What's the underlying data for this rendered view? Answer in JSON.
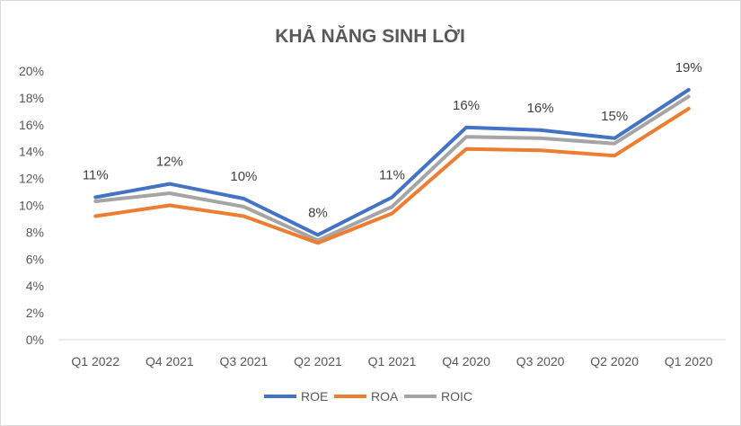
{
  "chart_data": {
    "type": "line",
    "title": "KHẢ NĂNG SINH LỜI",
    "categories": [
      "Q1 2022",
      "Q4 2021",
      "Q3 2021",
      "Q2 2021",
      "Q1 2021",
      "Q4 2020",
      "Q3 2020",
      "Q2 2020",
      "Q1 2020"
    ],
    "y_ticks": [
      "0%",
      "2%",
      "4%",
      "6%",
      "8%",
      "10%",
      "12%",
      "14%",
      "16%",
      "18%",
      "20%"
    ],
    "ylim": [
      0,
      20
    ],
    "xlabel": "",
    "ylabel": "",
    "grid": false,
    "legend_position": "bottom",
    "series": [
      {
        "name": "ROE",
        "color": "#4472c4",
        "values": [
          10.6,
          11.6,
          10.5,
          7.8,
          10.6,
          15.8,
          15.6,
          15.0,
          18.6
        ],
        "data_labels": [
          "11%",
          "12%",
          "10%",
          "8%",
          "11%",
          "16%",
          "16%",
          "15%",
          "19%"
        ]
      },
      {
        "name": "ROA",
        "color": "#ed7d31",
        "values": [
          9.2,
          10.0,
          9.2,
          7.2,
          9.4,
          14.2,
          14.1,
          13.7,
          17.2
        ]
      },
      {
        "name": "ROIC",
        "color": "#a5a5a5",
        "values": [
          10.3,
          10.9,
          9.9,
          7.4,
          9.9,
          15.1,
          15.0,
          14.6,
          18.1
        ]
      }
    ]
  }
}
